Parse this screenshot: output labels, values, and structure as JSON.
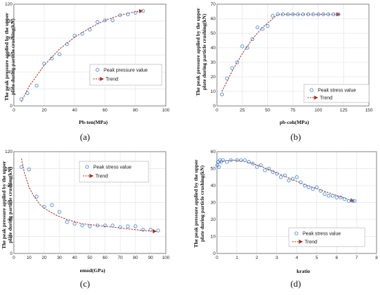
{
  "panels": [
    {
      "caption": "(a)",
      "legend_marker_label": "Peak pressure value",
      "legend_trend_label": "Trend",
      "marker_color": "#4a8fd6",
      "trend_color": "#b02a1a",
      "chart_data": {
        "type": "scatter",
        "xlabel": "Pb-ten(MPa)",
        "ylabel": [
          "The peak pressure applied by the upper",
          "plate during particle crushing(kN)"
        ],
        "xlim": [
          0,
          100
        ],
        "ylim": [
          0,
          120
        ],
        "xticks": [
          0,
          20,
          40,
          60,
          80,
          100
        ],
        "yticks": [
          0,
          20,
          40,
          60,
          80,
          100,
          120
        ],
        "grid": true,
        "legend_position": "center-right",
        "series": [
          {
            "name": "Peak pressure value",
            "kind": "points",
            "x": [
              5,
              9,
              15,
              20,
              25,
              30,
              35,
              40,
              45,
              50,
              55,
              60,
              65,
              70,
              75,
              80,
              85
            ],
            "y": [
              8,
              15,
              24,
              50,
              56,
              61,
              73,
              83,
              85,
              90,
              99,
              101,
              101,
              107,
              108,
              110,
              112
            ]
          },
          {
            "name": "Trend",
            "kind": "line",
            "x": [
              5,
              10,
              20,
              30,
              40,
              50,
              60,
              70,
              80,
              84
            ],
            "y": [
              5,
              23,
              48,
              67,
              81,
              92,
              101,
              107,
              111,
              112
            ]
          }
        ]
      }
    },
    {
      "caption": "(b)",
      "legend_marker_label": "Peak stress value",
      "legend_trend_label": "Trend",
      "marker_color": "#4a8fd6",
      "trend_color": "#b02a1a",
      "chart_data": {
        "type": "scatter",
        "xlabel": "pb-coh(MPa)",
        "ylabel": [
          "The peak pressure applied by the upper",
          "plate during particle crushing(kN)"
        ],
        "xlim": [
          0,
          150
        ],
        "ylim": [
          0,
          70
        ],
        "xticks": [
          0,
          25,
          50,
          75,
          100,
          125,
          150
        ],
        "yticks": [
          0,
          10,
          20,
          30,
          40,
          50,
          60,
          70
        ],
        "grid": true,
        "legend_position": "center-right",
        "series": [
          {
            "name": "Peak stress value",
            "kind": "points",
            "x": [
              5,
              10,
              15,
              20,
              25,
              30,
              35,
              40,
              45,
              50,
              55,
              60,
              65,
              70,
              75,
              80,
              85,
              90,
              95,
              100,
              105,
              110,
              115,
              120
            ],
            "y": [
              8,
              19,
              26,
              30,
              41,
              40,
              46,
              54,
              53,
              55,
              62,
              63,
              63,
              63,
              63,
              63,
              63,
              63,
              63,
              63,
              63,
              63,
              63,
              63
            ]
          },
          {
            "name": "Trend",
            "kind": "line",
            "x": [
              5,
              15,
              25,
              35,
              45,
              55,
              60,
              70,
              80,
              90,
              100,
              110,
              120
            ],
            "y": [
              10,
              24,
              36,
              46,
              54,
              60,
              63,
              63,
              63,
              63,
              63,
              63,
              63
            ]
          }
        ]
      }
    },
    {
      "caption": "(c)",
      "legend_marker_label": "Peak stress value",
      "legend_trend_label": "Trend",
      "marker_color": "#4a8fd6",
      "trend_color": "#b02a1a",
      "chart_data": {
        "type": "scatter",
        "xlabel": "emod(GPa)",
        "ylabel": [
          "The peak pressure applied by the upper",
          "plate during particle crushing(kN)"
        ],
        "xlim": [
          0,
          100
        ],
        "ylim": [
          0,
          120
        ],
        "xticks": [
          0,
          10,
          20,
          30,
          40,
          50,
          60,
          70,
          80,
          90,
          100
        ],
        "yticks": [
          0,
          20,
          40,
          60,
          80,
          100,
          120
        ],
        "grid": true,
        "legend_position": "top-right",
        "series": [
          {
            "name": "Peak stress value",
            "kind": "points",
            "x": [
              5,
              10,
              15,
              20,
              25,
              30,
              35,
              40,
              45,
              50,
              55,
              60,
              65,
              70,
              75,
              80,
              85,
              90,
              95
            ],
            "y": [
              102,
              99,
              67,
              55,
              57,
              49,
              37,
              35,
              33,
              32,
              33,
              33,
              33,
              31,
              32,
              32,
              28,
              28,
              27
            ]
          },
          {
            "name": "Trend",
            "kind": "line",
            "x": [
              5,
              7,
              10,
              13,
              17,
              22,
              28,
              35,
              45,
              55,
              65,
              75,
              85,
              93
            ],
            "y": [
              112,
              95,
              78,
              68,
              58,
              51,
              45,
              40,
              35,
              33,
              31,
              29,
              27,
              26
            ]
          }
        ]
      }
    },
    {
      "caption": "(d)",
      "legend_marker_label": "Peak stress value",
      "legend_trend_label": "Trend",
      "marker_color": "#4a8fd6",
      "trend_color": "#b02a1a",
      "chart_data": {
        "type": "scatter",
        "xlabel": "kratio",
        "ylabel": [
          "The peak pressure applied by the upper",
          "plate during particle crushing(kN)"
        ],
        "xlim": [
          0,
          8
        ],
        "ylim": [
          0,
          60
        ],
        "xticks": [
          0,
          1,
          2,
          3,
          4,
          5,
          6,
          7,
          8
        ],
        "yticks": [
          0,
          10,
          20,
          30,
          40,
          50,
          60
        ],
        "grid": true,
        "legend_position": "bottom-right",
        "series": [
          {
            "name": "Peak stress value",
            "kind": "points",
            "x": [
              0.02,
              0.05,
              0.1,
              0.15,
              0.2,
              0.3,
              0.5,
              0.7,
              1.0,
              1.2,
              1.4,
              1.6,
              1.8,
              2.0,
              2.2,
              2.4,
              2.6,
              2.8,
              3.0,
              3.2,
              3.4,
              3.6,
              3.8,
              4.0,
              4.2,
              4.4,
              4.6,
              4.8,
              5.0,
              5.2,
              5.4,
              5.6,
              5.8,
              6.0,
              6.2,
              6.4,
              6.6,
              6.8,
              6.9
            ],
            "y": [
              52,
              54,
              51,
              55,
              54,
              55,
              54,
              55,
              55,
              55,
              55,
              54,
              53,
              51,
              52,
              49,
              50,
              48,
              47,
              45,
              46,
              43,
              44,
              45,
              42,
              40,
              39,
              38,
              39,
              37,
              35,
              34,
              34,
              33,
              33,
              32,
              31,
              31,
              31
            ]
          },
          {
            "name": "Trend",
            "kind": "line",
            "x": [
              0,
              0.3,
              0.8,
              1.3,
              1.8,
              2.3,
              2.8,
              3.3,
              3.8,
              4.3,
              4.8,
              5.3,
              5.8,
              6.3,
              6.8
            ],
            "y": [
              53,
              54.5,
              55,
              54.5,
              53,
              51,
              48.5,
              46,
              43.5,
              41,
              39,
              37,
              35,
              33,
              31
            ]
          }
        ]
      }
    }
  ]
}
